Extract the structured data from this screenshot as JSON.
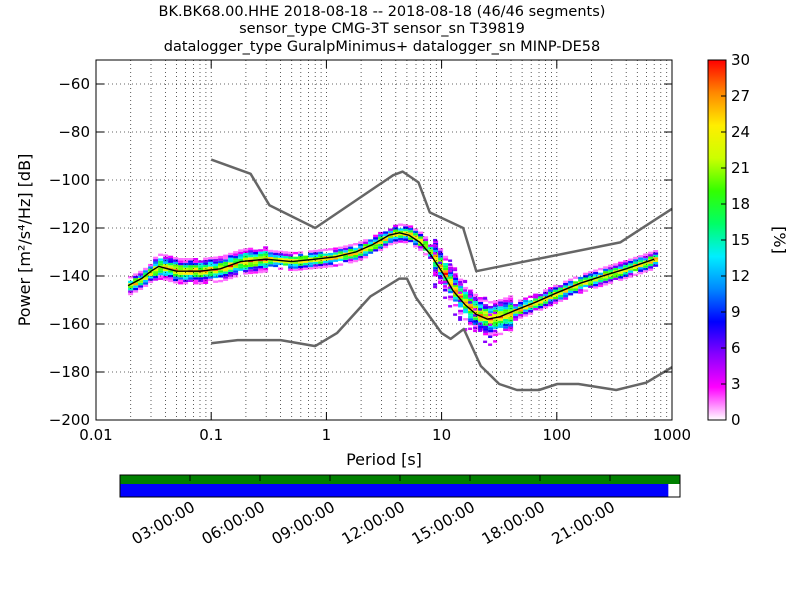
{
  "chart_data": {
    "type": "heatmap",
    "title_lines": [
      "BK.BK68.00.HHE   2018-08-18 -- 2018-08-18  (46/46 segments)",
      "sensor_type CMG-3T sensor_sn T39819",
      "datalogger_type GuralpMinimus+ datalogger_sn MINP-DE58"
    ],
    "xlabel": "Period [s]",
    "ylabel": "Power [m²/s⁴/Hz] [dB]",
    "x_scale": "log",
    "xlim": [
      0.01,
      1000
    ],
    "ylim": [
      -200,
      -50
    ],
    "x_ticks": [
      {
        "v": 0.01,
        "label": "0.01"
      },
      {
        "v": 0.1,
        "label": "0.1"
      },
      {
        "v": 1,
        "label": "1"
      },
      {
        "v": 10,
        "label": "10"
      },
      {
        "v": 100,
        "label": "100"
      },
      {
        "v": 1000,
        "label": "1000"
      }
    ],
    "y_ticks": [
      {
        "v": -60,
        "label": "−60"
      },
      {
        "v": -80,
        "label": "−80"
      },
      {
        "v": -100,
        "label": "−100"
      },
      {
        "v": -120,
        "label": "−120"
      },
      {
        "v": -140,
        "label": "−140"
      },
      {
        "v": -160,
        "label": "−160"
      },
      {
        "v": -180,
        "label": "−180"
      },
      {
        "v": -200,
        "label": "−200"
      }
    ],
    "grid": "dotted",
    "colorbar": {
      "label": "[%]",
      "range": [
        0,
        30
      ],
      "ticks": [
        {
          "v": 0,
          "label": "0"
        },
        {
          "v": 3,
          "label": "3"
        },
        {
          "v": 6,
          "label": "6"
        },
        {
          "v": 9,
          "label": "9"
        },
        {
          "v": 12,
          "label": "12"
        },
        {
          "v": 15,
          "label": "15"
        },
        {
          "v": 18,
          "label": "18"
        },
        {
          "v": 21,
          "label": "21"
        },
        {
          "v": 24,
          "label": "24"
        },
        {
          "v": 27,
          "label": "27"
        },
        {
          "v": 30,
          "label": "30"
        }
      ],
      "colors": [
        "#ffffff",
        "#ff00ff",
        "#8800ff",
        "#0000ff",
        "#0088ff",
        "#00eeff",
        "#00ff66",
        "#33ff00",
        "#ccff00",
        "#ffee00",
        "#ff8800",
        "#ff0000"
      ]
    },
    "noise_models": [
      {
        "name": "high",
        "points": [
          [
            0.1,
            -91.5
          ],
          [
            0.22,
            -97.4
          ],
          [
            0.32,
            -110.5
          ],
          [
            0.8,
            -120
          ],
          [
            3.8,
            -98
          ],
          [
            4.6,
            -96.5
          ],
          [
            6.3,
            -101
          ],
          [
            7.9,
            -113.5
          ],
          [
            15.4,
            -120
          ],
          [
            20,
            -138
          ],
          [
            354.8,
            -126
          ],
          [
            1000,
            -112
          ]
        ]
      },
      {
        "name": "low",
        "points": [
          [
            0.1,
            -168
          ],
          [
            0.17,
            -166.7
          ],
          [
            0.4,
            -166.7
          ],
          [
            0.8,
            -169.2
          ],
          [
            1.24,
            -163.7
          ],
          [
            2.4,
            -148.6
          ],
          [
            4.3,
            -141.1
          ],
          [
            5,
            -141.1
          ],
          [
            6,
            -149
          ],
          [
            10,
            -163.8
          ],
          [
            12,
            -166.2
          ],
          [
            15.6,
            -162.1
          ],
          [
            21.9,
            -177.5
          ],
          [
            31.6,
            -185
          ],
          [
            45,
            -187.5
          ],
          [
            70,
            -187.5
          ],
          [
            101,
            -185
          ],
          [
            154,
            -185
          ],
          [
            328,
            -187.5
          ],
          [
            600,
            -184.4
          ],
          [
            1000,
            -178
          ]
        ]
      }
    ],
    "mode_curve": [
      [
        0.019,
        -144
      ],
      [
        0.025,
        -141
      ],
      [
        0.03,
        -138
      ],
      [
        0.035,
        -136
      ],
      [
        0.05,
        -138
      ],
      [
        0.08,
        -138
      ],
      [
        0.12,
        -137
      ],
      [
        0.18,
        -134
      ],
      [
        0.3,
        -133
      ],
      [
        0.5,
        -134
      ],
      [
        0.8,
        -133
      ],
      [
        1.2,
        -132
      ],
      [
        1.8,
        -130
      ],
      [
        2.5,
        -127
      ],
      [
        3.5,
        -123
      ],
      [
        4.3,
        -122
      ],
      [
        5.2,
        -123
      ],
      [
        6.5,
        -126
      ],
      [
        8,
        -131
      ],
      [
        10,
        -138
      ],
      [
        12.5,
        -146
      ],
      [
        16,
        -152
      ],
      [
        20,
        -156
      ],
      [
        25,
        -158
      ],
      [
        32,
        -157
      ],
      [
        45,
        -154
      ],
      [
        65,
        -151
      ],
      [
        100,
        -147
      ],
      [
        160,
        -143
      ],
      [
        250,
        -140
      ],
      [
        400,
        -137
      ],
      [
        700,
        -133
      ]
    ],
    "timeline": {
      "ticks": [
        "03:00:00",
        "06:00:00",
        "09:00:00",
        "12:00:00",
        "15:00:00",
        "18:00:00",
        "21:00:00"
      ],
      "tick_hours": [
        3,
        6,
        9,
        12,
        15,
        18,
        21
      ],
      "hours_span": 24,
      "top_bar": {
        "color": "#008000",
        "coverage": [
          0,
          24
        ]
      },
      "bottom_bar": {
        "color": "#0000ff",
        "coverage": [
          0,
          23.5
        ]
      }
    }
  }
}
